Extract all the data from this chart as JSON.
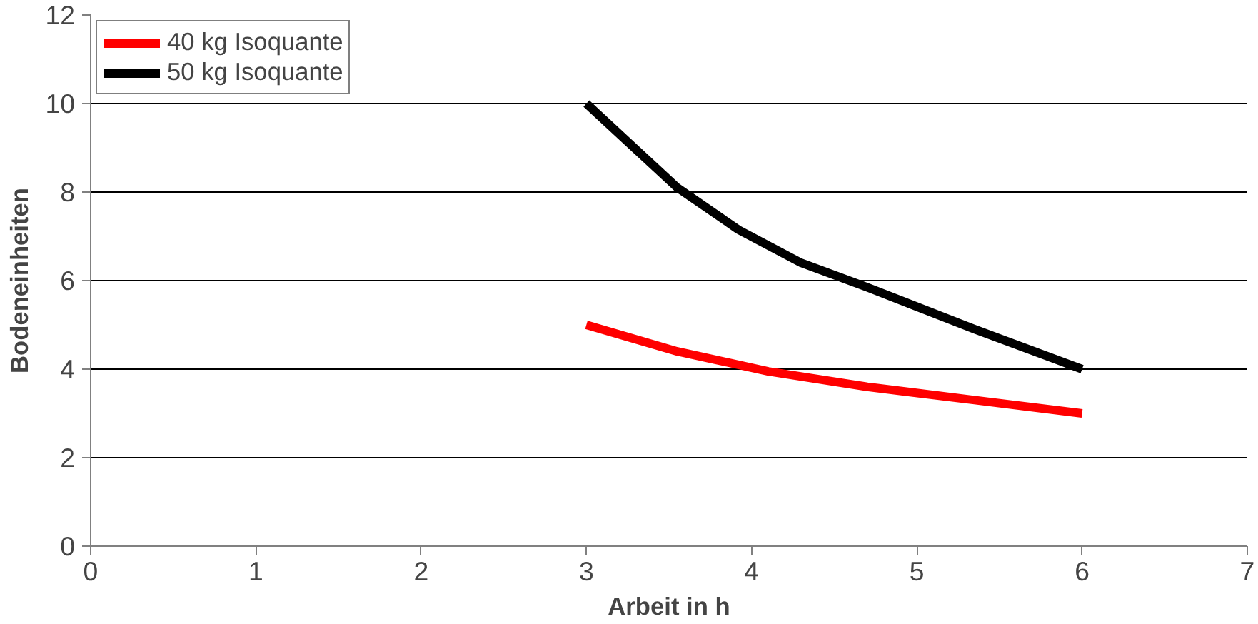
{
  "chart_data": {
    "type": "line",
    "xlabel": "Arbeit in h",
    "ylabel": "Bodeneinheiten",
    "xlim": [
      0,
      7
    ],
    "ylim": [
      0,
      12
    ],
    "xticks": [
      0,
      1,
      2,
      3,
      4,
      5,
      6,
      7
    ],
    "yticks": [
      0,
      2,
      4,
      6,
      8,
      10,
      12
    ],
    "grid": "y",
    "legend": "top left",
    "marker": "none",
    "line_style": "solid",
    "series": [
      {
        "name": "40 kg Isoquante",
        "color": "#ff0000",
        "x": [
          3,
          3.55,
          4.1,
          4.7,
          5.35,
          6
        ],
        "values": [
          5,
          4.4,
          3.95,
          3.6,
          3.3,
          3
        ]
      },
      {
        "name": "50 kg Isoquante",
        "color": "#000000",
        "x": [
          3,
          3.55,
          3.92,
          4.3,
          4.7,
          5.35,
          6
        ],
        "values": [
          10,
          8.1,
          7.15,
          6.4,
          5.85,
          4.9,
          4
        ]
      }
    ]
  }
}
